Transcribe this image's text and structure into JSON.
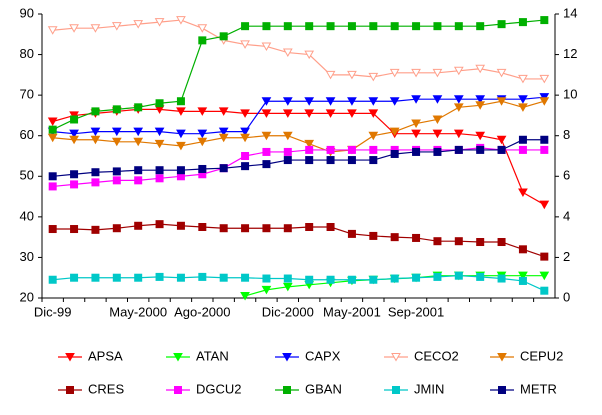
{
  "chart_data": {
    "type": "line",
    "categories": [
      "Dic-99",
      null,
      null,
      null,
      "May-2000",
      null,
      null,
      "Ago-2000",
      null,
      null,
      null,
      "Dic-2000",
      null,
      null,
      "May-2001",
      null,
      null,
      "Sep-2001",
      null,
      null,
      null,
      null,
      null,
      null
    ],
    "ylim": [
      20,
      90
    ],
    "yticks": [
      20,
      30,
      40,
      50,
      60,
      70,
      80,
      90
    ],
    "y2lim": [
      0,
      14
    ],
    "y2ticks": [
      0,
      2,
      4,
      6,
      8,
      10,
      12,
      14
    ],
    "legend": "bottom",
    "series": [
      {
        "name": "APSA",
        "color": "#ff0000",
        "marker": "triangle-down",
        "values": [
          63.5,
          65,
          65.5,
          66,
          66.5,
          66.5,
          66,
          66,
          66,
          65.5,
          65.5,
          65.5,
          65.5,
          65.5,
          65.5,
          65.5,
          60.5,
          60.5,
          60.5,
          60.5,
          60,
          59,
          46,
          43
        ]
      },
      {
        "name": "ATAN",
        "color": "#00ff00",
        "marker": "triangle-down",
        "axis": "y2",
        "values": [
          null,
          null,
          null,
          null,
          null,
          null,
          null,
          null,
          null,
          0.1,
          0.4,
          0.55,
          0.65,
          0.75,
          0.85,
          0.9,
          0.95,
          1.0,
          1.1,
          1.1,
          1.1,
          1.1,
          1.1,
          1.1
        ]
      },
      {
        "name": "CAPX",
        "color": "#0000ff",
        "marker": "triangle-down",
        "values": [
          61,
          60.5,
          61,
          61,
          61,
          61,
          60.5,
          60.5,
          61,
          61,
          68.5,
          68.5,
          68.5,
          68.5,
          68.5,
          68.5,
          68.5,
          69,
          69,
          69,
          69,
          69,
          69,
          69.5
        ]
      },
      {
        "name": "CECO2",
        "color": "#ff9f8a",
        "marker": "triangle-down-open",
        "values": [
          86,
          86.5,
          86.5,
          87,
          87.5,
          88,
          88.5,
          86.5,
          83.5,
          82.5,
          82,
          80.5,
          80,
          75,
          75,
          74.5,
          75.5,
          75.5,
          75.5,
          76,
          76.5,
          75.5,
          74,
          74
        ]
      },
      {
        "name": "CEPU2",
        "color": "#e07800",
        "marker": "triangle-down",
        "values": [
          59.5,
          59,
          59,
          58.5,
          58.5,
          58,
          57.5,
          58.5,
          59.5,
          59.5,
          60,
          60,
          58,
          56,
          56.5,
          60,
          61,
          63,
          64,
          67,
          67.5,
          68.5,
          67,
          68.5
        ]
      },
      {
        "name": "CRES",
        "color": "#a00000",
        "marker": "square",
        "values": [
          37,
          37,
          36.8,
          37.2,
          37.8,
          38.2,
          37.8,
          37.5,
          37.2,
          37.2,
          37.2,
          37.2,
          37.5,
          37.5,
          35.8,
          35.3,
          35,
          34.8,
          34,
          34,
          33.8,
          33.8,
          32,
          30.2
        ]
      },
      {
        "name": "DGCU2",
        "color": "#ff00ff",
        "marker": "square",
        "values": [
          47.5,
          48,
          48.5,
          49,
          49,
          49.5,
          50,
          50.5,
          52,
          55,
          56,
          56,
          56.5,
          56.5,
          56.5,
          56.5,
          56.5,
          56.5,
          56.5,
          56.5,
          57,
          56.5,
          56.5,
          56.5
        ]
      },
      {
        "name": "GBAN",
        "color": "#00b000",
        "marker": "square",
        "values": [
          61.5,
          64,
          66,
          66.5,
          67,
          68,
          68.5,
          83.5,
          84.5,
          87,
          87,
          87,
          87,
          87,
          87,
          87,
          87,
          87,
          87,
          87,
          87,
          87.5,
          88,
          88.5
        ]
      },
      {
        "name": "JMIN",
        "color": "#00c8c8",
        "marker": "square",
        "values": [
          24.5,
          25,
          25,
          25,
          25,
          25.2,
          25,
          25.2,
          25,
          25,
          24.8,
          24.8,
          24.5,
          24.5,
          24.5,
          24.5,
          24.8,
          25,
          25.2,
          25.5,
          25.2,
          24.8,
          24.2,
          21.8
        ]
      },
      {
        "name": "METR",
        "color": "#000080",
        "marker": "square",
        "values": [
          50,
          50.5,
          51,
          51.2,
          51.5,
          51.5,
          51.5,
          51.8,
          52,
          52.5,
          53,
          54,
          54,
          54,
          54,
          54,
          55.5,
          56,
          56,
          56.5,
          56.5,
          56.5,
          59,
          59
        ]
      }
    ]
  }
}
